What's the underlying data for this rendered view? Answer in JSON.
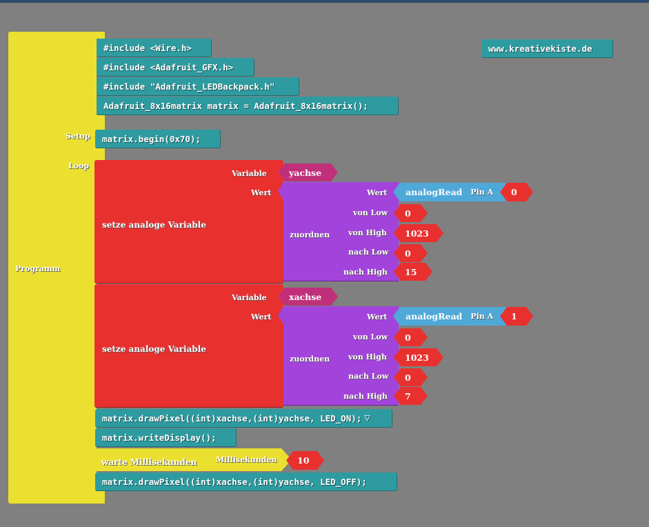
{
  "program": {
    "label": "Programm",
    "setup_label": "Setup",
    "loop_label": "Loop"
  },
  "includes": [
    "#include <Wire.h>",
    "#include <Adafruit_GFX.h>",
    "#include \"Adafruit_LEDBackpack.h\"",
    "Adafruit_8x16matrix matrix = Adafruit_8x16matrix();"
  ],
  "setup_code": "matrix.begin(0x70);",
  "website": "www.kreativekiste.de",
  "set_blocks": [
    {
      "title": "setze analoge Variable",
      "variable_label": "Variable",
      "variable": "yachse",
      "wert_label": "Wert",
      "map_label": "zuordnen",
      "map_wert": "Wert",
      "analog": "analogRead",
      "pin_label": "Pin A",
      "pin": "0",
      "von_low_label": "von Low",
      "von_low": "0",
      "von_high_label": "von High",
      "von_high": "1023",
      "nach_low_label": "nach Low",
      "nach_low": "0",
      "nach_high_label": "nach High",
      "nach_high": "15"
    },
    {
      "title": "setze analoge Variable",
      "variable_label": "Variable",
      "variable": "xachse",
      "wert_label": "Wert",
      "map_label": "zuordnen",
      "map_wert": "Wert",
      "analog": "analogRead",
      "pin_label": "Pin A",
      "pin": "1",
      "von_low_label": "von Low",
      "von_low": "0",
      "von_high_label": "von High",
      "von_high": "1023",
      "nach_low_label": "nach Low",
      "nach_low": "0",
      "nach_high_label": "nach High",
      "nach_high": "7"
    }
  ],
  "loop_after": {
    "draw_on": "matrix.drawPixel((int)xachse,(int)yachse, LED_ON);",
    "dropdown": "▽",
    "write": "matrix.writeDisplay();",
    "wait_label": "warte Millisekunden",
    "wait_param": "Millisekunden",
    "wait_value": "10",
    "draw_off": "matrix.drawPixel((int)xachse,(int)yachse, LED_OFF);"
  }
}
